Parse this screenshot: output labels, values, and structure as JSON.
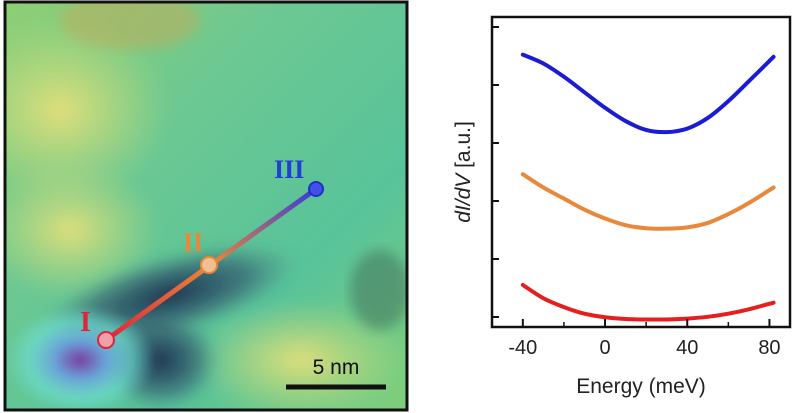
{
  "stm_image": {
    "point_labels": [
      "I",
      "II",
      "III"
    ],
    "point_colors": [
      "#e0243a",
      "#e8883a",
      "#1f3fd6"
    ],
    "scale_bar_label": "5 nm"
  },
  "chart_data": {
    "type": "line",
    "xlabel": "Energy (meV)",
    "ylabel_italic": "dI/dV",
    "ylabel_unit": " [a.u.]",
    "xlim": [
      -55,
      90
    ],
    "x_ticks": [
      -40,
      0,
      40,
      80
    ],
    "x_tick_labels": [
      "-40",
      "0",
      "40",
      "80"
    ],
    "y_tick_count": 6,
    "series": [
      {
        "color": "#1b1bd6",
        "x": [
          -40,
          -30,
          -20,
          -10,
          0,
          10,
          20,
          30,
          40,
          50,
          60,
          70,
          82
        ],
        "y": [
          8.05,
          7.85,
          7.55,
          7.2,
          6.85,
          6.55,
          6.35,
          6.3,
          6.38,
          6.62,
          7.0,
          7.45,
          8.0
        ]
      },
      {
        "color": "#e8883a",
        "x": [
          -40,
          -30,
          -20,
          -10,
          0,
          10,
          20,
          30,
          40,
          50,
          60,
          70,
          82
        ],
        "y": [
          5.35,
          5.05,
          4.8,
          4.55,
          4.35,
          4.2,
          4.13,
          4.12,
          4.15,
          4.25,
          4.45,
          4.7,
          5.05
        ]
      },
      {
        "color": "#e51e1e",
        "x": [
          -40,
          -30,
          -20,
          -10,
          0,
          10,
          20,
          30,
          40,
          50,
          60,
          70,
          82
        ],
        "y": [
          2.85,
          2.55,
          2.35,
          2.2,
          2.12,
          2.08,
          2.07,
          2.07,
          2.09,
          2.13,
          2.2,
          2.3,
          2.45
        ]
      }
    ],
    "ylim": [
      1.9,
      8.9
    ]
  }
}
